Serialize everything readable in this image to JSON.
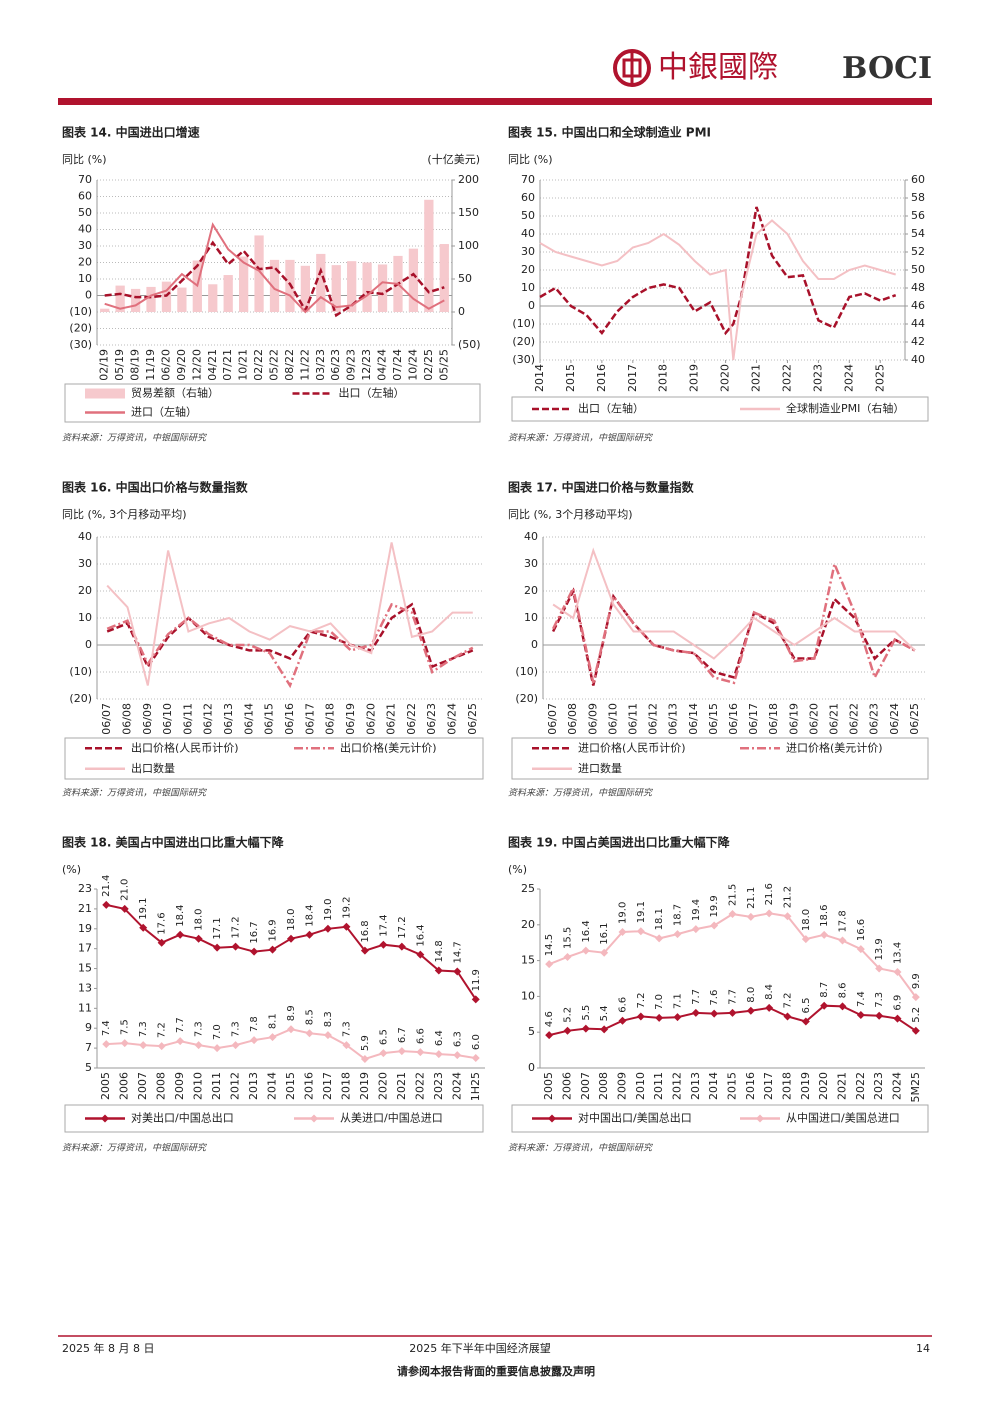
{
  "header": {
    "logo_cn": "中銀國際",
    "logo_en": "BOCI"
  },
  "footer": {
    "date": "2025 年 8 月 8 日",
    "report": "2025 年下半年中国经济展望",
    "page": "14",
    "disclaimer": "请参阅本报告背面的重要信息披露及声明"
  },
  "chart_data": [
    {
      "type": "line",
      "title": "图表 14. 中国进出口增速",
      "y_label": "同比 (%)",
      "y2_label": "(十亿美元)",
      "source": "资料来源：万得资讯，中银国际研究",
      "grid": true,
      "categories": [
        "02/19",
        "05/19",
        "08/19",
        "11/19",
        "06/20",
        "09/20",
        "12/20",
        "04/21",
        "07/21",
        "10/21",
        "02/22",
        "05/22",
        "08/22",
        "11/22",
        "03/23",
        "06/23",
        "09/23",
        "12/23",
        "04/24",
        "07/24",
        "10/24",
        "02/25",
        "05/25"
      ],
      "ylim": [
        -30,
        70
      ],
      "yticks": [
        70,
        60,
        50,
        40,
        30,
        20,
        10,
        0,
        {
          "value": -10,
          "label": "(10)"
        },
        {
          "value": -20,
          "label": "(20)"
        },
        {
          "value": -30,
          "label": "(30)"
        }
      ],
      "y2lim": [
        -50,
        200
      ],
      "y2ticks": [
        200,
        150,
        100,
        50,
        0,
        {
          "value": -50,
          "label": "(50)"
        }
      ],
      "series": [
        {
          "name": "贸易差额（右轴）",
          "color": "#f6c9cd",
          "style": "bar",
          "axis": "y2",
          "values": [
            5,
            40,
            35,
            38,
            46,
            37,
            78,
            42,
            56,
            84,
            116,
            79,
            79,
            70,
            88,
            71,
            77,
            75,
            72,
            85,
            96,
            170,
            103
          ]
        },
        {
          "name": "出口（左轴）",
          "color": "#a8112a",
          "style": "dash",
          "values": [
            0,
            1,
            -1,
            -1,
            0,
            9,
            18,
            32,
            19,
            27,
            16,
            17,
            7,
            -9,
            15,
            -12,
            -6,
            2,
            1,
            7,
            13,
            2,
            5
          ]
        },
        {
          "name": "进口（左轴）",
          "color": "#e0707d",
          "style": "solid",
          "values": [
            -5,
            -8,
            -6,
            0,
            3,
            13,
            6,
            43,
            28,
            20,
            15,
            4,
            0,
            -10,
            -1,
            -7,
            -6,
            0,
            8,
            7,
            -2,
            -8,
            -3
          ]
        }
      ]
    },
    {
      "type": "line",
      "title": "图表 15. 中国出口和全球制造业 PMI",
      "y_label": "同比 (%)",
      "source": "资料来源：万得资讯，中银国际研究",
      "grid": true,
      "x": [
        2014,
        2014.5,
        2015,
        2015.5,
        2016,
        2016.5,
        2017,
        2017.5,
        2018,
        2018.5,
        2019,
        2019.5,
        2020,
        2020.25,
        2020.5,
        2021,
        2021.5,
        2022,
        2022.5,
        2023,
        2023.5,
        2024,
        2024.5,
        2025,
        2025.5
      ],
      "xlim": [
        2014,
        2025.8
      ],
      "xticks": [
        2014,
        2015,
        2016,
        2017,
        2018,
        2019,
        2020,
        2021,
        2022,
        2023,
        2024,
        2025
      ],
      "ylim": [
        -30,
        70
      ],
      "yticks": [
        70,
        60,
        50,
        40,
        30,
        20,
        10,
        0,
        {
          "value": -10,
          "label": "(10)"
        },
        {
          "value": -20,
          "label": "(20)"
        },
        {
          "value": -30,
          "label": "(30)"
        }
      ],
      "y2lim": [
        40,
        60
      ],
      "y2ticks": [
        60,
        58,
        56,
        54,
        52,
        50,
        48,
        46,
        44,
        42,
        40
      ],
      "series": [
        {
          "name": "出口（左轴）",
          "color": "#a8112a",
          "style": "dash",
          "values": [
            5,
            10,
            0,
            -5,
            -15,
            -3,
            5,
            10,
            12,
            10,
            -3,
            2,
            -15,
            -10,
            5,
            55,
            28,
            16,
            17,
            -8,
            -12,
            5,
            7,
            3,
            6
          ]
        },
        {
          "name": "全球制造业PMI（右轴）",
          "color": "#f4c0c4",
          "style": "solid",
          "axis": "y2",
          "values": [
            53,
            52,
            51.5,
            51,
            50.5,
            51,
            52.5,
            53,
            54,
            52.8,
            51,
            49.5,
            50,
            40,
            47,
            54,
            55.5,
            54,
            51,
            49,
            49,
            50,
            50.5,
            50,
            49.5
          ]
        }
      ]
    },
    {
      "type": "line",
      "title": "图表 16. 中国出口价格与数量指数",
      "y_label": "同比 (%, 3个月移动平均)",
      "source": "资料来源：万得资讯，中银国际研究",
      "grid": true,
      "categories": [
        "06/07",
        "06/08",
        "06/09",
        "06/10",
        "06/11",
        "06/12",
        "06/13",
        "06/14",
        "06/15",
        "06/16",
        "06/17",
        "06/18",
        "06/19",
        "06/20",
        "06/21",
        "06/22",
        "06/23",
        "06/24",
        "06/25"
      ],
      "ylim": [
        -20,
        40
      ],
      "yticks": [
        40,
        30,
        20,
        10,
        0,
        {
          "value": -10,
          "label": "(10)"
        },
        {
          "value": -20,
          "label": "(20)"
        }
      ],
      "series": [
        {
          "name": "出口价格(人民币计价)",
          "color": "#a8112a",
          "style": "dash",
          "values": [
            5,
            8,
            -8,
            3,
            10,
            3,
            0,
            -2,
            -2,
            -5,
            5,
            3,
            0,
            -2,
            10,
            15,
            -8,
            -5,
            -2
          ]
        },
        {
          "name": "出口价格(美元计价)",
          "color": "#e0707d",
          "style": "dashdot",
          "values": [
            6,
            9,
            -7,
            4,
            10,
            4,
            0,
            0,
            -3,
            -15,
            5,
            5,
            -2,
            0,
            15,
            12,
            -10,
            -5,
            -1
          ]
        },
        {
          "name": "出口数量",
          "color": "#f4c0c4",
          "style": "solid",
          "values": [
            22,
            14,
            -15,
            35,
            5,
            8,
            10,
            5,
            2,
            7,
            5,
            8,
            0,
            -3,
            38,
            3,
            5,
            12,
            12
          ]
        }
      ]
    },
    {
      "type": "line",
      "title": "图表 17. 中国进口价格与数量指数",
      "y_label": "同比 (%, 3个月移动平均)",
      "source": "资料来源：万得资讯，中银国际研究",
      "grid": true,
      "categories": [
        "06/07",
        "06/08",
        "06/09",
        "06/10",
        "06/11",
        "06/12",
        "06/13",
        "06/14",
        "06/15",
        "06/16",
        "06/17",
        "06/18",
        "06/19",
        "06/20",
        "06/21",
        "06/22",
        "06/23",
        "06/24",
        "06/25"
      ],
      "ylim": [
        -20,
        40
      ],
      "yticks": [
        40,
        30,
        20,
        10,
        0,
        {
          "value": -10,
          "label": "(10)"
        },
        {
          "value": -20,
          "label": "(20)"
        }
      ],
      "series": [
        {
          "name": "进口价格(人民币计价)",
          "color": "#a8112a",
          "style": "dash",
          "values": [
            5,
            20,
            -15,
            18,
            8,
            0,
            -2,
            -3,
            -10,
            -12,
            12,
            8,
            -5,
            -5,
            17,
            10,
            -5,
            2,
            -2
          ]
        },
        {
          "name": "进口价格(美元计价)",
          "color": "#e0707d",
          "style": "dashdot",
          "values": [
            6,
            21,
            -14,
            18,
            8,
            0,
            -2,
            -3,
            -12,
            -14,
            12,
            9,
            -6,
            -5,
            30,
            12,
            -12,
            2,
            -2
          ]
        },
        {
          "name": "进口数量",
          "color": "#f4c0c4",
          "style": "solid",
          "values": [
            15,
            10,
            35,
            15,
            5,
            5,
            5,
            0,
            -5,
            2,
            10,
            5,
            0,
            5,
            10,
            5,
            5,
            5,
            -2
          ]
        }
      ]
    },
    {
      "type": "line",
      "title": "图表 18. 美国占中国进出口比重大幅下降",
      "y_label": "(%)",
      "source": "资料来源：万得资讯，中银国际研究",
      "grid": false,
      "categories": [
        "2005",
        "2006",
        "2007",
        "2008",
        "2009",
        "2010",
        "2011",
        "2012",
        "2013",
        "2014",
        "2015",
        "2016",
        "2017",
        "2018",
        "2019",
        "2020",
        "2021",
        "2022",
        "2023",
        "2024",
        "1H25"
      ],
      "ylim": [
        5,
        23
      ],
      "yticks": [
        23,
        21,
        19,
        17,
        15,
        13,
        11,
        9,
        7,
        5
      ],
      "series": [
        {
          "name": "对美出口/中国总出口",
          "color": "#b0132e",
          "style": "marker",
          "values": [
            21.4,
            21,
            19.1,
            17.6,
            18.4,
            18,
            17.1,
            17.2,
            16.7,
            16.9,
            18,
            18.4,
            19,
            19.2,
            16.8,
            17.4,
            17.2,
            16.4,
            14.8,
            14.7,
            11.9
          ],
          "value_labels": [
            "21.4",
            "21.0",
            "19.1",
            "17.6",
            "18.4",
            "18.0",
            "17.1",
            "17.2",
            "16.7",
            "16.9",
            "18.0",
            "18.4",
            "19.0",
            "19.2",
            "16.8",
            "17.4",
            "17.2",
            "16.4",
            "14.8",
            "14.7",
            "11.9"
          ]
        },
        {
          "name": "从美进口/中国总进口",
          "color": "#f4b8be",
          "style": "marker",
          "values": [
            7.4,
            7.5,
            7.3,
            7.2,
            7.7,
            7.3,
            7,
            7.3,
            7.8,
            8.1,
            8.9,
            8.5,
            8.3,
            7.3,
            5.9,
            6.5,
            6.7,
            6.6,
            6.4,
            6.3,
            6
          ],
          "value_labels": [
            "7.4",
            "7.5",
            "7.3",
            "7.2",
            "7.7",
            "7.3",
            "7.0",
            "7.3",
            "7.8",
            "8.1",
            "8.9",
            "8.5",
            "8.3",
            "7.3",
            "5.9",
            "6.5",
            "6.7",
            "6.6",
            "6.4",
            "6.3",
            "6.0"
          ]
        }
      ]
    },
    {
      "type": "line",
      "title": "图表 19. 中国占美国进出口比重大幅下降",
      "y_label": "(%)",
      "source": "资料来源：万得资讯，中银国际研究",
      "grid": false,
      "categories": [
        "2005",
        "2006",
        "2007",
        "2008",
        "2009",
        "2010",
        "2011",
        "2012",
        "2013",
        "2014",
        "2015",
        "2016",
        "2017",
        "2018",
        "2019",
        "2020",
        "2021",
        "2022",
        "2023",
        "2024",
        "5M25"
      ],
      "ylim": [
        0,
        25
      ],
      "yticks": [
        25,
        20,
        15,
        10,
        5,
        0
      ],
      "series": [
        {
          "name": "对中国出口/美国总出口",
          "color": "#b0132e",
          "style": "marker",
          "values": [
            4.6,
            5.2,
            5.5,
            5.4,
            6.6,
            7.2,
            7,
            7.1,
            7.7,
            7.6,
            7.7,
            8,
            8.4,
            7.2,
            6.5,
            8.7,
            8.6,
            7.4,
            7.3,
            6.9,
            5.2
          ],
          "value_labels": [
            "4.6",
            "5.2",
            "5.5",
            "5.4",
            "6.6",
            "7.2",
            "7.0",
            "7.1",
            "7.7",
            "7.6",
            "7.7",
            "8.0",
            "8.4",
            "7.2",
            "6.5",
            "8.7",
            "8.6",
            "7.4",
            "7.3",
            "6.9",
            "5.2"
          ]
        },
        {
          "name": "从中国进口/美国总进口",
          "color": "#f4b8be",
          "style": "marker",
          "values": [
            14.5,
            15.5,
            16.4,
            16.1,
            19,
            19.1,
            18.1,
            18.7,
            19.4,
            19.9,
            21.5,
            21.1,
            21.6,
            21.2,
            18,
            18.6,
            17.8,
            16.6,
            13.9,
            13.4,
            9.9
          ],
          "value_labels": [
            "14.5",
            "15.5",
            "16.4",
            "16.1",
            "19.0",
            "19.1",
            "18.1",
            "18.7",
            "19.4",
            "19.9",
            "21.5",
            "21.1",
            "21.6",
            "21.2",
            "18.0",
            "18.6",
            "17.8",
            "16.6",
            "13.9",
            "13.4",
            "9.9"
          ]
        }
      ]
    }
  ]
}
